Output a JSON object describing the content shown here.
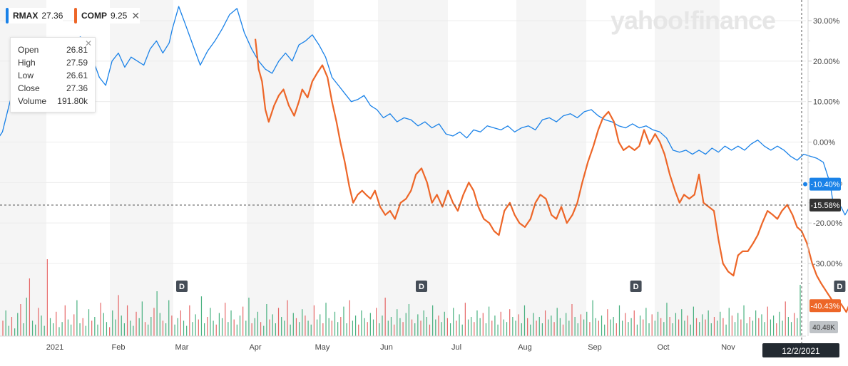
{
  "legend": [
    {
      "symbol": "RMAX",
      "value": "27.36",
      "color": "#1a82e8"
    },
    {
      "symbol": "COMP",
      "value": "9.25",
      "color": "#ed6628"
    }
  ],
  "watermark": "yahoo!finance",
  "tooltip": {
    "rows": [
      {
        "label": "Open",
        "value": "26.81"
      },
      {
        "label": "High",
        "value": "27.59"
      },
      {
        "label": "Low",
        "value": "26.61"
      },
      {
        "label": "Close",
        "value": "27.36"
      },
      {
        "label": "Volume",
        "value": "191.80k"
      }
    ]
  },
  "chart_data": {
    "type": "line",
    "y_ticks": [
      30,
      20,
      10,
      0,
      -10,
      -20,
      -30
    ],
    "y_tick_labels": [
      "30.00%",
      "20.00%",
      "10.00%",
      "0.00%",
      "-10.00%",
      "-20.00%",
      "-30.00%"
    ],
    "ylim": [
      -42,
      35
    ],
    "x_tick_labels": [
      "2021",
      "Feb",
      "Mar",
      "Apr",
      "May",
      "Jun",
      "Jul",
      "Aug",
      "Sep",
      "Oct",
      "Nov"
    ],
    "dividend_marker_label": "D",
    "dividend_markers_month_index": [
      2.0,
      5.5,
      8.6,
      11.7
    ],
    "crosshair_label": "-15.58%",
    "crosshair_value": -15.58,
    "date_label": "12/2/2021",
    "volume_label": "40.48K",
    "series": [
      {
        "name": "RMAX",
        "color": "#1a82e8",
        "end_label": "-10.40%",
        "end_value": -10.4,
        "points": [
          [
            -0.9,
            0.1
          ],
          [
            -0.8,
            2.5
          ],
          [
            -0.7,
            9.0
          ],
          [
            -0.6,
            15.0
          ],
          [
            -0.5,
            13.0
          ],
          [
            -0.4,
            9.0
          ],
          [
            -0.25,
            14.0
          ],
          [
            -0.1,
            17.0
          ],
          [
            0.0,
            19.5
          ],
          [
            0.1,
            18.0
          ],
          [
            0.2,
            21.0
          ],
          [
            0.3,
            24.0
          ],
          [
            0.4,
            26.0
          ],
          [
            0.55,
            22.5
          ],
          [
            0.7,
            16.0
          ],
          [
            0.8,
            14.0
          ],
          [
            0.9,
            20.0
          ],
          [
            1.0,
            22.0
          ],
          [
            1.1,
            18.5
          ],
          [
            1.2,
            21.0
          ],
          [
            1.3,
            20.0
          ],
          [
            1.4,
            19.0
          ],
          [
            1.5,
            23.0
          ],
          [
            1.6,
            25.0
          ],
          [
            1.7,
            22.0
          ],
          [
            1.8,
            24.5
          ],
          [
            1.85,
            28.0
          ],
          [
            1.95,
            33.5
          ],
          [
            2.05,
            29.0
          ],
          [
            2.15,
            24.0
          ],
          [
            2.25,
            19.0
          ],
          [
            2.35,
            22.5
          ],
          [
            2.45,
            25.0
          ],
          [
            2.55,
            28.0
          ],
          [
            2.65,
            31.5
          ],
          [
            2.75,
            33.0
          ],
          [
            2.85,
            27.0
          ],
          [
            2.95,
            23.0
          ],
          [
            3.05,
            20.0
          ],
          [
            3.15,
            18.0
          ],
          [
            3.25,
            17.0
          ],
          [
            3.35,
            20.0
          ],
          [
            3.45,
            22.0
          ],
          [
            3.55,
            20.0
          ],
          [
            3.65,
            24.0
          ],
          [
            3.75,
            25.0
          ],
          [
            3.85,
            26.5
          ],
          [
            3.95,
            24.0
          ],
          [
            4.05,
            21.0
          ],
          [
            4.15,
            16.0
          ],
          [
            4.25,
            14.0
          ],
          [
            4.35,
            12.0
          ],
          [
            4.45,
            10.0
          ],
          [
            4.55,
            10.5
          ],
          [
            4.65,
            11.5
          ],
          [
            4.75,
            9.0
          ],
          [
            4.85,
            8.0
          ],
          [
            4.95,
            6.0
          ],
          [
            5.05,
            7.0
          ],
          [
            5.15,
            5.0
          ],
          [
            5.25,
            6.0
          ],
          [
            5.35,
            5.5
          ],
          [
            5.45,
            4.0
          ],
          [
            5.55,
            5.0
          ],
          [
            5.65,
            3.5
          ],
          [
            5.75,
            4.5
          ],
          [
            5.85,
            2.0
          ],
          [
            5.95,
            1.5
          ],
          [
            6.05,
            2.5
          ],
          [
            6.15,
            1.0
          ],
          [
            6.25,
            3.0
          ],
          [
            6.35,
            2.5
          ],
          [
            6.45,
            4.0
          ],
          [
            6.55,
            3.5
          ],
          [
            6.65,
            3.0
          ],
          [
            6.75,
            4.0
          ],
          [
            6.85,
            2.5
          ],
          [
            6.95,
            3.5
          ],
          [
            7.05,
            4.0
          ],
          [
            7.15,
            3.0
          ],
          [
            7.25,
            5.5
          ],
          [
            7.35,
            6.0
          ],
          [
            7.45,
            5.0
          ],
          [
            7.55,
            6.5
          ],
          [
            7.65,
            7.0
          ],
          [
            7.75,
            6.0
          ],
          [
            7.85,
            7.5
          ],
          [
            7.95,
            8.0
          ],
          [
            8.05,
            6.5
          ],
          [
            8.15,
            5.5
          ],
          [
            8.25,
            5.0
          ],
          [
            8.35,
            4.0
          ],
          [
            8.45,
            3.5
          ],
          [
            8.55,
            4.5
          ],
          [
            8.65,
            3.5
          ],
          [
            8.75,
            4.0
          ],
          [
            8.85,
            3.0
          ],
          [
            8.95,
            2.5
          ],
          [
            9.05,
            1.0
          ],
          [
            9.15,
            -2.0
          ],
          [
            9.25,
            -2.5
          ],
          [
            9.35,
            -2.0
          ],
          [
            9.45,
            -3.0
          ],
          [
            9.55,
            -2.0
          ],
          [
            9.65,
            -3.0
          ],
          [
            9.75,
            -1.5
          ],
          [
            9.85,
            -2.5
          ],
          [
            9.95,
            -1.0
          ],
          [
            10.05,
            -2.0
          ],
          [
            10.15,
            -1.0
          ],
          [
            10.25,
            -2.0
          ],
          [
            10.35,
            -0.5
          ],
          [
            10.45,
            0.5
          ],
          [
            10.55,
            -1.0
          ],
          [
            10.65,
            -2.0
          ],
          [
            10.75,
            -1.0
          ],
          [
            10.85,
            -2.0
          ],
          [
            10.95,
            -3.5
          ],
          [
            11.05,
            -4.5
          ],
          [
            11.15,
            -3.0
          ],
          [
            11.25,
            -3.5
          ],
          [
            11.35,
            -4.0
          ],
          [
            11.45,
            -5.0
          ],
          [
            11.55,
            -10.0
          ],
          [
            11.6,
            -15.0
          ],
          [
            11.65,
            -17.0
          ],
          [
            11.72,
            -16.0
          ],
          [
            11.78,
            -18.0
          ],
          [
            11.85,
            -16.0
          ],
          [
            11.92,
            -13.0
          ],
          [
            11.98,
            -10.4
          ]
        ]
      },
      {
        "name": "COMP",
        "color": "#ed6628",
        "end_label": "-40.43%",
        "end_value": -40.43,
        "points": [
          [
            3.0,
            25.5
          ],
          [
            3.05,
            18.0
          ],
          [
            3.1,
            15.0
          ],
          [
            3.15,
            8.0
          ],
          [
            3.2,
            5.0
          ],
          [
            3.28,
            9.0
          ],
          [
            3.35,
            11.5
          ],
          [
            3.42,
            13.0
          ],
          [
            3.5,
            9.0
          ],
          [
            3.58,
            6.5
          ],
          [
            3.65,
            10.0
          ],
          [
            3.7,
            13.0
          ],
          [
            3.78,
            11.0
          ],
          [
            3.85,
            15.0
          ],
          [
            3.92,
            17.0
          ],
          [
            4.0,
            19.0
          ],
          [
            4.08,
            16.0
          ],
          [
            4.15,
            10.0
          ],
          [
            4.22,
            5.0
          ],
          [
            4.28,
            0.0
          ],
          [
            4.35,
            -5.0
          ],
          [
            4.42,
            -11.0
          ],
          [
            4.48,
            -15.0
          ],
          [
            4.55,
            -13.0
          ],
          [
            4.62,
            -12.0
          ],
          [
            4.68,
            -13.0
          ],
          [
            4.75,
            -14.0
          ],
          [
            4.82,
            -12.0
          ],
          [
            4.9,
            -16.0
          ],
          [
            4.98,
            -18.0
          ],
          [
            5.05,
            -17.0
          ],
          [
            5.12,
            -19.0
          ],
          [
            5.2,
            -15.0
          ],
          [
            5.28,
            -14.0
          ],
          [
            5.35,
            -12.0
          ],
          [
            5.42,
            -8.0
          ],
          [
            5.5,
            -6.5
          ],
          [
            5.58,
            -10.0
          ],
          [
            5.65,
            -15.0
          ],
          [
            5.72,
            -13.0
          ],
          [
            5.8,
            -16.0
          ],
          [
            5.88,
            -12.0
          ],
          [
            5.95,
            -15.0
          ],
          [
            6.02,
            -17.0
          ],
          [
            6.1,
            -13.0
          ],
          [
            6.18,
            -10.0
          ],
          [
            6.25,
            -12.0
          ],
          [
            6.32,
            -16.0
          ],
          [
            6.4,
            -19.0
          ],
          [
            6.48,
            -20.0
          ],
          [
            6.55,
            -22.0
          ],
          [
            6.62,
            -23.0
          ],
          [
            6.7,
            -17.0
          ],
          [
            6.78,
            -15.0
          ],
          [
            6.85,
            -18.0
          ],
          [
            6.92,
            -20.0
          ],
          [
            7.0,
            -21.0
          ],
          [
            7.08,
            -19.0
          ],
          [
            7.15,
            -15.0
          ],
          [
            7.22,
            -13.0
          ],
          [
            7.3,
            -14.0
          ],
          [
            7.38,
            -18.0
          ],
          [
            7.45,
            -19.0
          ],
          [
            7.52,
            -16.0
          ],
          [
            7.6,
            -20.0
          ],
          [
            7.68,
            -18.0
          ],
          [
            7.75,
            -15.0
          ],
          [
            7.82,
            -10.0
          ],
          [
            7.9,
            -5.0
          ],
          [
            7.98,
            -1.0
          ],
          [
            8.05,
            3.0
          ],
          [
            8.12,
            6.0
          ],
          [
            8.2,
            7.5
          ],
          [
            8.28,
            5.0
          ],
          [
            8.35,
            0.0
          ],
          [
            8.42,
            -2.0
          ],
          [
            8.5,
            -1.0
          ],
          [
            8.58,
            -2.0
          ],
          [
            8.65,
            -1.0
          ],
          [
            8.72,
            3.0
          ],
          [
            8.8,
            -0.5
          ],
          [
            8.88,
            2.0
          ],
          [
            8.95,
            0.0
          ],
          [
            9.02,
            -3.0
          ],
          [
            9.1,
            -8.0
          ],
          [
            9.18,
            -12.0
          ],
          [
            9.25,
            -15.0
          ],
          [
            9.32,
            -13.0
          ],
          [
            9.4,
            -14.0
          ],
          [
            9.48,
            -13.0
          ],
          [
            9.55,
            -8.0
          ],
          [
            9.62,
            -15.0
          ],
          [
            9.7,
            -16.0
          ],
          [
            9.78,
            -17.0
          ],
          [
            9.85,
            -24.0
          ],
          [
            9.92,
            -30.0
          ],
          [
            10.0,
            -32.0
          ],
          [
            10.08,
            -33.0
          ],
          [
            10.15,
            -28.0
          ],
          [
            10.22,
            -27.0
          ],
          [
            10.3,
            -27.0
          ],
          [
            10.38,
            -25.0
          ],
          [
            10.45,
            -23.0
          ],
          [
            10.52,
            -20.0
          ],
          [
            10.6,
            -17.0
          ],
          [
            10.68,
            -18.0
          ],
          [
            10.75,
            -19.0
          ],
          [
            10.82,
            -17.0
          ],
          [
            10.9,
            -15.5
          ],
          [
            10.98,
            -18.0
          ],
          [
            11.05,
            -21.0
          ],
          [
            11.12,
            -22.0
          ],
          [
            11.2,
            -25.0
          ],
          [
            11.28,
            -30.0
          ],
          [
            11.35,
            -33.0
          ],
          [
            11.42,
            -35.0
          ],
          [
            11.5,
            -37.0
          ],
          [
            11.58,
            -39.0
          ],
          [
            11.65,
            -41.0
          ],
          [
            11.72,
            -40.0
          ],
          [
            11.8,
            -42.0
          ],
          [
            11.85,
            -40.0
          ],
          [
            11.92,
            -41.0
          ],
          [
            11.98,
            -40.43
          ]
        ]
      }
    ],
    "volume": [
      12,
      20,
      8,
      15,
      6,
      18,
      25,
      10,
      30,
      45,
      12,
      9,
      22,
      16,
      8,
      60,
      14,
      10,
      19,
      7,
      11,
      24,
      13,
      9,
      17,
      28,
      10,
      14,
      8,
      21,
      12,
      15,
      9,
      26,
      18,
      11,
      7,
      20,
      13,
      32,
      16,
      10,
      24,
      12,
      8,
      19,
      14,
      27,
      11,
      9,
      15,
      22,
      35,
      18,
      12,
      10,
      28,
      16,
      9,
      14,
      20,
      12,
      8,
      24,
      11,
      17,
      13,
      31,
      10,
      15,
      22,
      12,
      9,
      18,
      14,
      26,
      11,
      20,
      13,
      9,
      16,
      23,
      12,
      30,
      10,
      14,
      19,
      11,
      8,
      25,
      13,
      17,
      10,
      22,
      15,
      12,
      28,
      9,
      18,
      14,
      11,
      21,
      16,
      12,
      9,
      24,
      13,
      17,
      10,
      26,
      14,
      12,
      19,
      11,
      15,
      23,
      10,
      28,
      12,
      16,
      9,
      20,
      14,
      11,
      18,
      13,
      22,
      10,
      16,
      30,
      12,
      15,
      9,
      21,
      14,
      11,
      18,
      25,
      13,
      10,
      17,
      12,
      20,
      15,
      9,
      24,
      13,
      16,
      11,
      19,
      14,
      10,
      22,
      12,
      17,
      9,
      26,
      13,
      15,
      11,
      20,
      14,
      18,
      10,
      23,
      12,
      16,
      9,
      19,
      13,
      11,
      21,
      15,
      12,
      17,
      10,
      24,
      14,
      9,
      18,
      12,
      15,
      10,
      20,
      13,
      16,
      11,
      22,
      14,
      9,
      18,
      12,
      25,
      15,
      10,
      17,
      13,
      19,
      11,
      28,
      14,
      12,
      16,
      9,
      21,
      13,
      15,
      10,
      24,
      12,
      18,
      11,
      14,
      20,
      9,
      16,
      13,
      22,
      10,
      17,
      12,
      19,
      14,
      11,
      26,
      15,
      10,
      18,
      13,
      21,
      12,
      16,
      9,
      23,
      14,
      11,
      17,
      13,
      20,
      10,
      15,
      12,
      19,
      14,
      9,
      22,
      16,
      11,
      18,
      13,
      24,
      10,
      15,
      12,
      20,
      14,
      17,
      11,
      23,
      13,
      16,
      10,
      19,
      12,
      27,
      15,
      11,
      18,
      14,
      40
    ],
    "volume_unit_label": "40.48K"
  }
}
